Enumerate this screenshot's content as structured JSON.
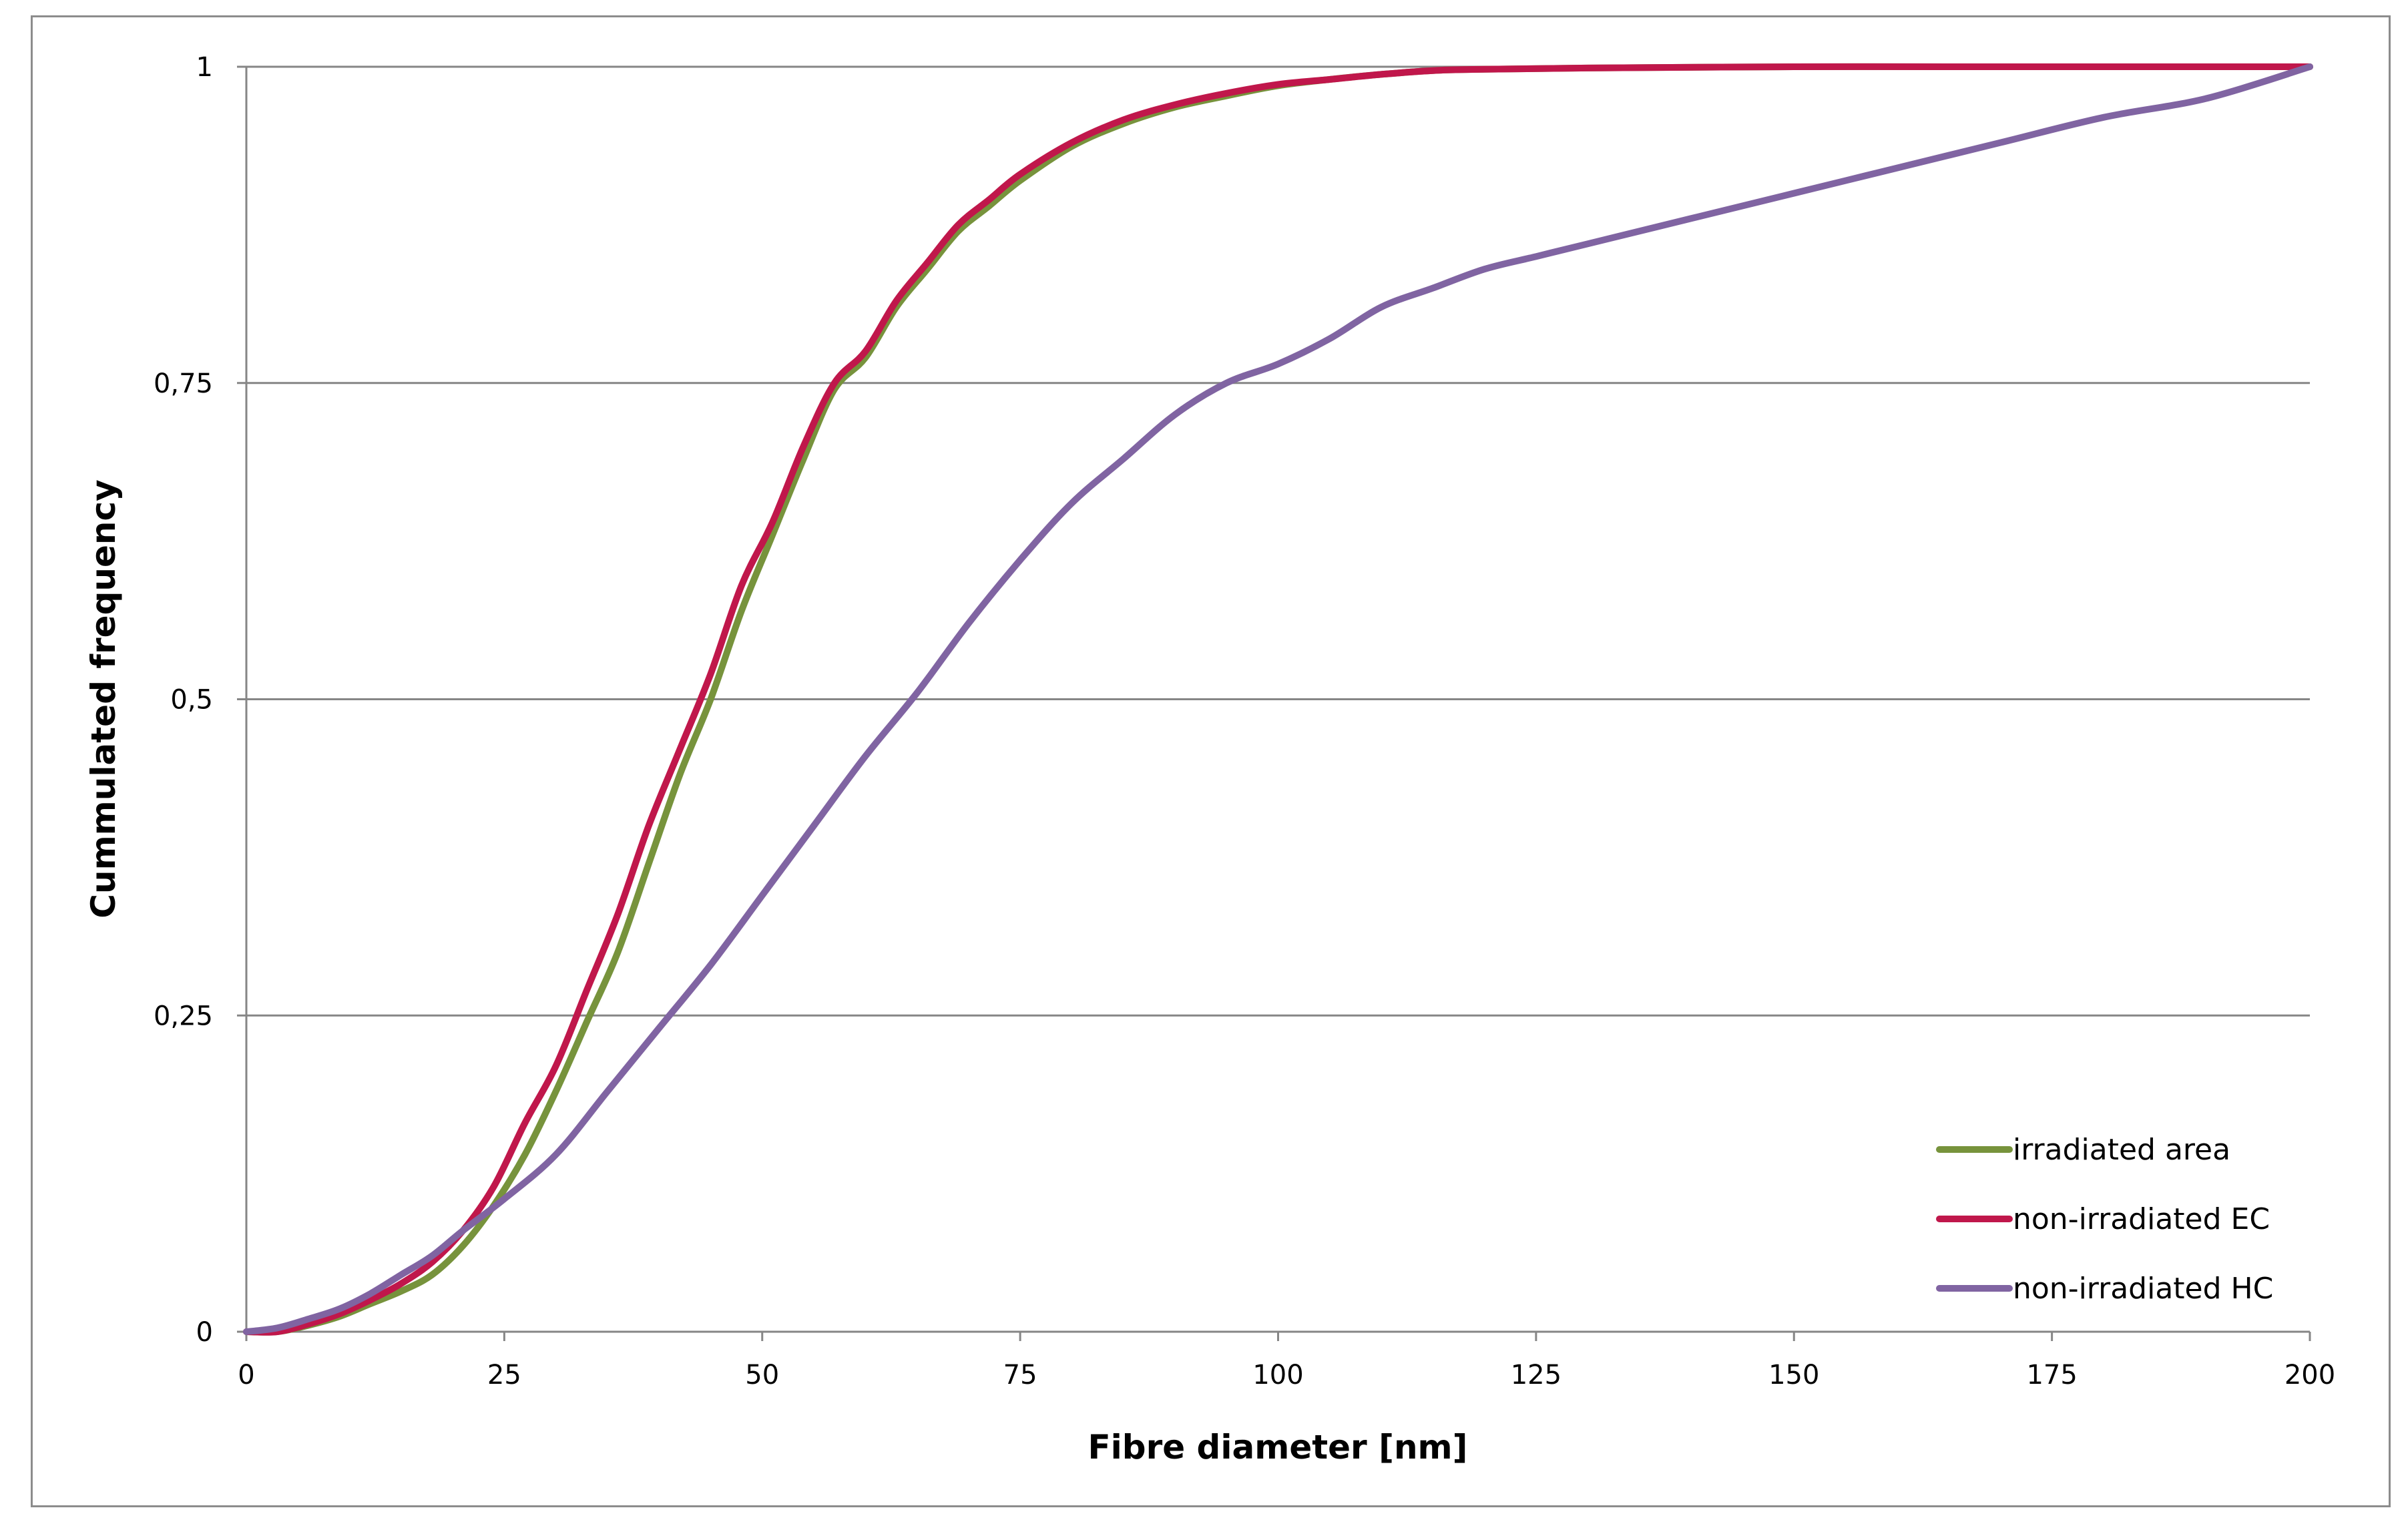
{
  "chart_data": {
    "type": "line",
    "title": "",
    "xlabel": "Fibre diameter [nm]",
    "ylabel": "Cummulated frequency",
    "xlim": [
      0,
      200
    ],
    "ylim": [
      0,
      1
    ],
    "x_ticks": [
      "0",
      "25",
      "50",
      "75",
      "100",
      "125",
      "150",
      "175",
      "200"
    ],
    "y_ticks": [
      "0",
      "0,25",
      "0,5",
      "0,75",
      "1"
    ],
    "x_tick_values": [
      0,
      25,
      50,
      75,
      100,
      125,
      150,
      175,
      200
    ],
    "y_tick_values": [
      0,
      0.25,
      0.5,
      0.75,
      1
    ],
    "grid": "horizontal",
    "legend_position": "bottom-right",
    "series": [
      {
        "name": "irradiated area",
        "color": "#77933c",
        "x": [
          0,
          3,
          6,
          9,
          12,
          15,
          18,
          21,
          24,
          27,
          30,
          33,
          36,
          39,
          42,
          45,
          48,
          51,
          54,
          57,
          60,
          63,
          66,
          69,
          72,
          75,
          80,
          85,
          90,
          95,
          100,
          105,
          110,
          115,
          120,
          130,
          150,
          170,
          200
        ],
        "y": [
          0,
          0.0,
          0.005,
          0.012,
          0.022,
          0.032,
          0.045,
          0.068,
          0.1,
          0.14,
          0.19,
          0.245,
          0.3,
          0.37,
          0.44,
          0.5,
          0.57,
          0.63,
          0.69,
          0.745,
          0.77,
          0.81,
          0.84,
          0.87,
          0.89,
          0.91,
          0.937,
          0.955,
          0.968,
          0.977,
          0.985,
          0.99,
          0.994,
          0.997,
          0.998,
          0.999,
          1.0,
          1.0,
          1.0
        ]
      },
      {
        "name": "non-irradiated EC",
        "color": "#c0174b",
        "x": [
          0,
          3,
          6,
          9,
          12,
          15,
          18,
          21,
          24,
          27,
          30,
          33,
          36,
          39,
          42,
          45,
          48,
          51,
          54,
          57,
          60,
          63,
          66,
          69,
          72,
          75,
          80,
          85,
          90,
          95,
          100,
          105,
          110,
          115,
          120,
          130,
          150,
          170,
          200
        ],
        "y": [
          0,
          0.0,
          0.006,
          0.014,
          0.025,
          0.038,
          0.055,
          0.08,
          0.115,
          0.165,
          0.21,
          0.27,
          0.33,
          0.4,
          0.46,
          0.52,
          0.59,
          0.64,
          0.7,
          0.75,
          0.775,
          0.815,
          0.845,
          0.875,
          0.895,
          0.915,
          0.94,
          0.958,
          0.97,
          0.979,
          0.986,
          0.99,
          0.994,
          0.997,
          0.998,
          0.999,
          1.0,
          1.0,
          1.0
        ]
      },
      {
        "name": "non-irradiated HC",
        "color": "#8064a2",
        "x": [
          0,
          3,
          6,
          9,
          12,
          15,
          18,
          21,
          25,
          30,
          35,
          40,
          45,
          50,
          55,
          60,
          65,
          70,
          75,
          80,
          85,
          90,
          95,
          100,
          105,
          110,
          115,
          120,
          125,
          130,
          140,
          150,
          160,
          170,
          180,
          190,
          200
        ],
        "y": [
          0,
          0.003,
          0.01,
          0.018,
          0.03,
          0.045,
          0.06,
          0.08,
          0.105,
          0.14,
          0.19,
          0.24,
          0.29,
          0.345,
          0.4,
          0.455,
          0.505,
          0.56,
          0.61,
          0.655,
          0.69,
          0.725,
          0.75,
          0.765,
          0.785,
          0.81,
          0.825,
          0.84,
          0.85,
          0.86,
          0.88,
          0.9,
          0.92,
          0.94,
          0.96,
          0.975,
          1.0
        ]
      }
    ]
  }
}
